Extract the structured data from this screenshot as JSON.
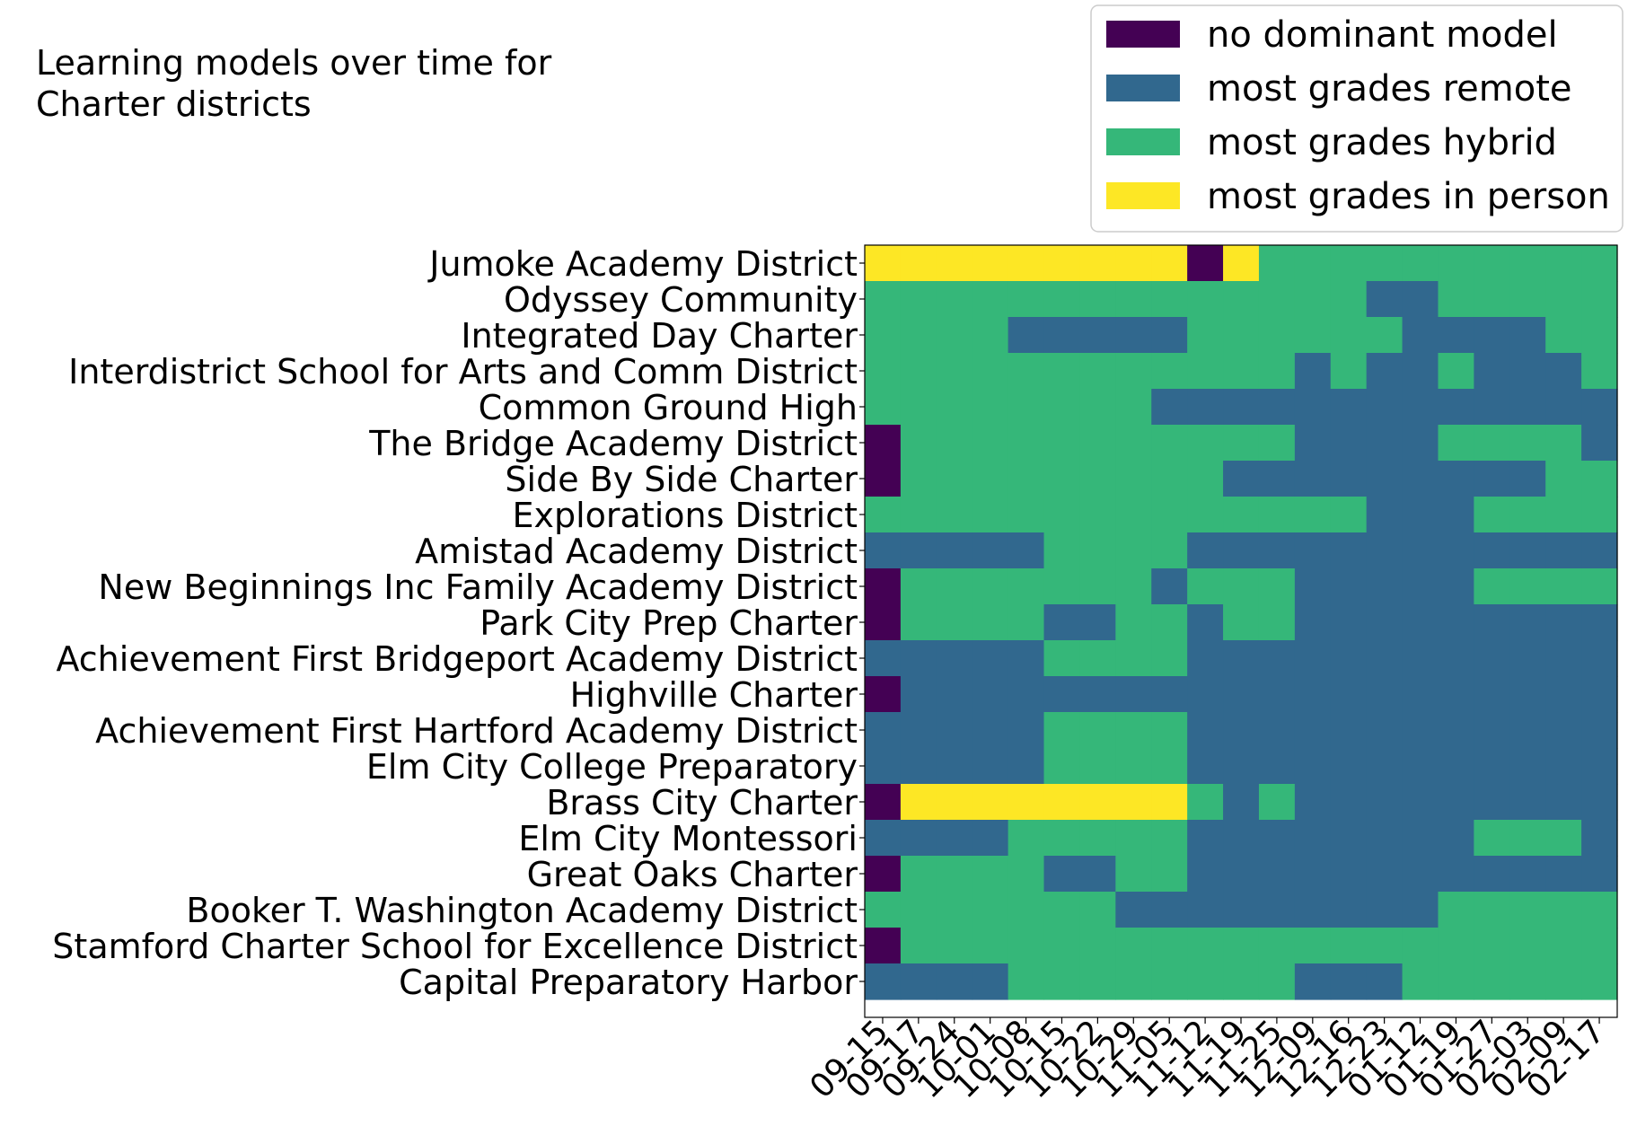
{
  "chart_data": {
    "type": "heatmap",
    "title": "Learning models over time for\nCharter districts",
    "xlabel": "",
    "ylabel": "",
    "x_ticks": [
      "09-15",
      "09-17",
      "09-24",
      "10-01",
      "10-08",
      "10-15",
      "10-22",
      "10-29",
      "11-05",
      "11-12",
      "11-19",
      "11-25",
      "12-09",
      "12-16",
      "12-23",
      "01-12",
      "01-19",
      "01-27",
      "02-03",
      "02-09",
      "02-17"
    ],
    "districts": [
      "Jumoke Academy District",
      "Odyssey Community",
      "Integrated Day Charter",
      "Interdistrict School for Arts and Comm District",
      "Common Ground High",
      "The Bridge Academy District",
      "Side By Side Charter",
      "Explorations District",
      "Amistad Academy District",
      "New Beginnings Inc Family Academy District",
      "Park City Prep Charter",
      "Achievement First Bridgeport Academy District",
      "Highville Charter",
      "Achievement First Hartford Academy District",
      "Elm City College Preparatory",
      "Brass City Charter",
      "Elm City Montessori",
      "Great Oaks Charter",
      "Booker T. Washington Academy District",
      "Stamford Charter School for Excellence District",
      "Capital Preparatory Harbor"
    ],
    "categories": [
      {
        "code": 0,
        "label": "no dominant model",
        "color": "#440154"
      },
      {
        "code": 1,
        "label": "most grades remote",
        "color": "#31688e"
      },
      {
        "code": 2,
        "label": "most grades hybrid",
        "color": "#35b779"
      },
      {
        "code": 3,
        "label": "most grades in person",
        "color": "#fde725"
      }
    ],
    "values": [
      [
        3,
        3,
        3,
        3,
        3,
        3,
        3,
        3,
        3,
        0,
        3,
        2,
        2,
        2,
        2,
        2,
        2,
        2,
        2,
        2,
        2
      ],
      [
        2,
        2,
        2,
        2,
        2,
        2,
        2,
        2,
        2,
        2,
        2,
        2,
        2,
        2,
        1,
        1,
        2,
        2,
        2,
        2,
        2
      ],
      [
        2,
        2,
        2,
        2,
        1,
        1,
        1,
        1,
        1,
        2,
        2,
        2,
        2,
        2,
        2,
        1,
        1,
        1,
        1,
        2,
        2
      ],
      [
        2,
        2,
        2,
        2,
        2,
        2,
        2,
        2,
        2,
        2,
        2,
        2,
        1,
        2,
        1,
        1,
        2,
        1,
        1,
        1,
        2
      ],
      [
        2,
        2,
        2,
        2,
        2,
        2,
        2,
        2,
        1,
        1,
        1,
        1,
        1,
        1,
        1,
        1,
        1,
        1,
        1,
        1,
        1
      ],
      [
        0,
        2,
        2,
        2,
        2,
        2,
        2,
        2,
        2,
        2,
        2,
        2,
        1,
        1,
        1,
        1,
        2,
        2,
        2,
        2,
        1
      ],
      [
        0,
        2,
        2,
        2,
        2,
        2,
        2,
        2,
        2,
        2,
        1,
        1,
        1,
        1,
        1,
        1,
        1,
        1,
        1,
        2,
        2
      ],
      [
        2,
        2,
        2,
        2,
        2,
        2,
        2,
        2,
        2,
        2,
        2,
        2,
        2,
        2,
        1,
        1,
        1,
        2,
        2,
        2,
        2
      ],
      [
        1,
        1,
        1,
        1,
        1,
        2,
        2,
        2,
        2,
        1,
        1,
        1,
        1,
        1,
        1,
        1,
        1,
        1,
        1,
        1,
        1
      ],
      [
        0,
        2,
        2,
        2,
        2,
        2,
        2,
        2,
        1,
        2,
        2,
        2,
        1,
        1,
        1,
        1,
        1,
        2,
        2,
        2,
        2
      ],
      [
        0,
        2,
        2,
        2,
        2,
        1,
        1,
        2,
        2,
        1,
        2,
        2,
        1,
        1,
        1,
        1,
        1,
        1,
        1,
        1,
        1
      ],
      [
        1,
        1,
        1,
        1,
        1,
        2,
        2,
        2,
        2,
        1,
        1,
        1,
        1,
        1,
        1,
        1,
        1,
        1,
        1,
        1,
        1
      ],
      [
        0,
        1,
        1,
        1,
        1,
        1,
        1,
        1,
        1,
        1,
        1,
        1,
        1,
        1,
        1,
        1,
        1,
        1,
        1,
        1,
        1
      ],
      [
        1,
        1,
        1,
        1,
        1,
        2,
        2,
        2,
        2,
        1,
        1,
        1,
        1,
        1,
        1,
        1,
        1,
        1,
        1,
        1,
        1
      ],
      [
        1,
        1,
        1,
        1,
        1,
        2,
        2,
        2,
        2,
        1,
        1,
        1,
        1,
        1,
        1,
        1,
        1,
        1,
        1,
        1,
        1
      ],
      [
        0,
        3,
        3,
        3,
        3,
        3,
        3,
        3,
        3,
        2,
        1,
        2,
        1,
        1,
        1,
        1,
        1,
        1,
        1,
        1,
        1
      ],
      [
        1,
        1,
        1,
        1,
        2,
        2,
        2,
        2,
        2,
        1,
        1,
        1,
        1,
        1,
        1,
        1,
        1,
        2,
        2,
        2,
        1
      ],
      [
        0,
        2,
        2,
        2,
        2,
        1,
        1,
        2,
        2,
        1,
        1,
        1,
        1,
        1,
        1,
        1,
        1,
        1,
        1,
        1,
        1
      ],
      [
        2,
        2,
        2,
        2,
        2,
        2,
        2,
        1,
        1,
        1,
        1,
        1,
        1,
        1,
        1,
        1,
        2,
        2,
        2,
        2,
        2
      ],
      [
        0,
        2,
        2,
        2,
        2,
        2,
        2,
        2,
        2,
        2,
        2,
        2,
        2,
        2,
        2,
        2,
        2,
        2,
        2,
        2,
        2
      ],
      [
        1,
        1,
        1,
        1,
        2,
        2,
        2,
        2,
        2,
        2,
        2,
        2,
        1,
        1,
        1,
        2,
        2,
        2,
        2,
        2,
        2
      ]
    ],
    "legend_position": "top-right",
    "grid": false
  }
}
